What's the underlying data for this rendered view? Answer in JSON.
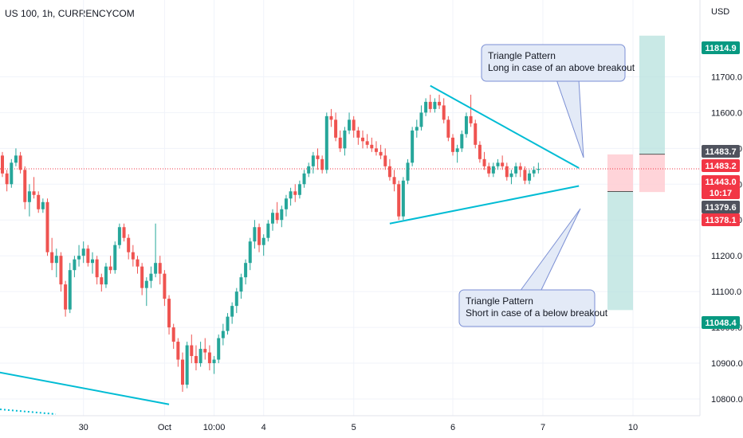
{
  "header": {
    "title": "US 100, 1h, CURRENCYCOM",
    "currency": "USD"
  },
  "colors": {
    "up": "#26a69a",
    "down": "#ef5350",
    "trendline": "#00bcd4",
    "profit_zone": "#b2dfdb",
    "loss_zone": "#ffcdd2",
    "callout_fill": "#e3eaf7",
    "callout_border": "#7b8fd4",
    "tag_green": "#089981",
    "tag_red": "#f23645",
    "tag_gray": "#50535e"
  },
  "chart_data": {
    "type": "candlestick",
    "ylim": [
      10780,
      11870
    ],
    "yticks": [
      11700,
      11600,
      11500,
      11400,
      11300,
      11200,
      11100,
      11000,
      10900,
      10800
    ],
    "ytick_labels": [
      "11700.0",
      "11600.0",
      "11500.0",
      "11400.0",
      "11300.0",
      "11200.0",
      "11100.0",
      "11000.0",
      "10900.0",
      "10800.0"
    ],
    "xtick_labels": [
      "30",
      "Oct",
      "10:00",
      "4",
      "5",
      "6",
      "7",
      "10"
    ],
    "price_tags": [
      {
        "label": "11814.9",
        "value": 11814.9,
        "color": "green"
      },
      {
        "label": "11483.7",
        "value": 11483.7,
        "color": "gray"
      },
      {
        "label": "11483.2",
        "value": 11483.2,
        "color": "red"
      },
      {
        "label": "11443.0",
        "value": 11443.0,
        "color": "red"
      },
      {
        "label": "10:17",
        "value": 11420,
        "color": "red"
      },
      {
        "label": "11379.6",
        "value": 11379.6,
        "color": "gray"
      },
      {
        "label": "11378.1",
        "value": 11378.1,
        "color": "red"
      },
      {
        "label": "11048.4",
        "value": 11048.4,
        "color": "green"
      }
    ],
    "candles": [
      [
        11480,
        11490,
        11420,
        11430
      ],
      [
        11430,
        11440,
        11380,
        11400
      ],
      [
        11400,
        11470,
        11390,
        11460
      ],
      [
        11460,
        11500,
        11450,
        11480
      ],
      [
        11480,
        11490,
        11430,
        11440
      ],
      [
        11440,
        11450,
        11330,
        11350
      ],
      [
        11350,
        11400,
        11310,
        11380
      ],
      [
        11380,
        11420,
        11360,
        11370
      ],
      [
        11370,
        11380,
        11320,
        11330
      ],
      [
        11330,
        11360,
        11320,
        11350
      ],
      [
        11350,
        11360,
        11200,
        11210
      ],
      [
        11210,
        11250,
        11160,
        11180
      ],
      [
        11180,
        11220,
        11140,
        11200
      ],
      [
        11200,
        11210,
        11100,
        11120
      ],
      [
        11120,
        11130,
        11030,
        11050
      ],
      [
        11050,
        11180,
        11040,
        11160
      ],
      [
        11160,
        11200,
        11140,
        11190
      ],
      [
        11190,
        11230,
        11170,
        11200
      ],
      [
        11200,
        11240,
        11180,
        11220
      ],
      [
        11220,
        11230,
        11170,
        11180
      ],
      [
        11180,
        11210,
        11150,
        11190
      ],
      [
        11190,
        11200,
        11120,
        11140
      ],
      [
        11140,
        11150,
        11100,
        11120
      ],
      [
        11120,
        11180,
        11110,
        11170
      ],
      [
        11170,
        11200,
        11150,
        11160
      ],
      [
        11160,
        11240,
        11150,
        11230
      ],
      [
        11230,
        11290,
        11220,
        11280
      ],
      [
        11280,
        11290,
        11240,
        11250
      ],
      [
        11250,
        11260,
        11190,
        11210
      ],
      [
        11210,
        11230,
        11170,
        11190
      ],
      [
        11190,
        11200,
        11150,
        11170
      ],
      [
        11170,
        11180,
        11090,
        11110
      ],
      [
        11110,
        11140,
        11060,
        11130
      ],
      [
        11130,
        11170,
        11110,
        11150
      ],
      [
        11150,
        11290,
        11140,
        11180
      ],
      [
        11180,
        11200,
        11120,
        11150
      ],
      [
        11150,
        11160,
        11060,
        11080
      ],
      [
        11080,
        11090,
        10980,
        11000
      ],
      [
        11000,
        11010,
        10940,
        10960
      ],
      [
        10960,
        10970,
        10890,
        10910
      ],
      [
        10910,
        10930,
        10820,
        10840
      ],
      [
        10840,
        10960,
        10830,
        10950
      ],
      [
        10950,
        10980,
        10900,
        10920
      ],
      [
        10920,
        10950,
        10880,
        10900
      ],
      [
        10900,
        10960,
        10890,
        10940
      ],
      [
        10940,
        10970,
        10910,
        10930
      ],
      [
        10930,
        10950,
        10880,
        10900
      ],
      [
        10900,
        10920,
        10870,
        10910
      ],
      [
        10910,
        10980,
        10900,
        10970
      ],
      [
        10970,
        11010,
        10950,
        10990
      ],
      [
        10990,
        11040,
        10980,
        11030
      ],
      [
        11030,
        11070,
        11010,
        11060
      ],
      [
        11060,
        11110,
        11040,
        11100
      ],
      [
        11100,
        11150,
        11080,
        11140
      ],
      [
        11140,
        11190,
        11120,
        11180
      ],
      [
        11180,
        11250,
        11160,
        11240
      ],
      [
        11240,
        11300,
        11220,
        11280
      ],
      [
        11280,
        11290,
        11210,
        11230
      ],
      [
        11230,
        11260,
        11200,
        11250
      ],
      [
        11250,
        11300,
        11240,
        11290
      ],
      [
        11290,
        11330,
        11270,
        11320
      ],
      [
        11320,
        11350,
        11290,
        11300
      ],
      [
        11300,
        11340,
        11280,
        11330
      ],
      [
        11330,
        11370,
        11310,
        11360
      ],
      [
        11360,
        11390,
        11340,
        11380
      ],
      [
        11380,
        11400,
        11350,
        11370
      ],
      [
        11370,
        11410,
        11360,
        11400
      ],
      [
        11400,
        11440,
        11390,
        11430
      ],
      [
        11430,
        11460,
        11420,
        11450
      ],
      [
        11450,
        11490,
        11430,
        11480
      ],
      [
        11480,
        11500,
        11440,
        11470
      ],
      [
        11470,
        11480,
        11430,
        11440
      ],
      [
        11440,
        11600,
        11430,
        11590
      ],
      [
        11590,
        11610,
        11560,
        11580
      ],
      [
        11580,
        11600,
        11520,
        11530
      ],
      [
        11530,
        11550,
        11490,
        11500
      ],
      [
        11500,
        11560,
        11480,
        11550
      ],
      [
        11550,
        11600,
        11540,
        11580
      ],
      [
        11580,
        11590,
        11530,
        11550
      ],
      [
        11550,
        11560,
        11510,
        11530
      ],
      [
        11530,
        11550,
        11500,
        11520
      ],
      [
        11520,
        11540,
        11500,
        11510
      ],
      [
        11510,
        11530,
        11490,
        11500
      ],
      [
        11500,
        11520,
        11480,
        11490
      ],
      [
        11490,
        11510,
        11470,
        11480
      ],
      [
        11480,
        11500,
        11440,
        11450
      ],
      [
        11450,
        11470,
        11410,
        11420
      ],
      [
        11420,
        11440,
        11380,
        11400
      ],
      [
        11400,
        11410,
        11300,
        11310
      ],
      [
        11310,
        11420,
        11300,
        11410
      ],
      [
        11410,
        11470,
        11400,
        11460
      ],
      [
        11460,
        11560,
        11450,
        11550
      ],
      [
        11550,
        11580,
        11530,
        11560
      ],
      [
        11560,
        11620,
        11550,
        11600
      ],
      [
        11600,
        11640,
        11590,
        11630
      ],
      [
        11630,
        11650,
        11600,
        11610
      ],
      [
        11610,
        11640,
        11600,
        11630
      ],
      [
        11630,
        11650,
        11610,
        11620
      ],
      [
        11620,
        11640,
        11570,
        11580
      ],
      [
        11580,
        11590,
        11520,
        11530
      ],
      [
        11530,
        11540,
        11480,
        11490
      ],
      [
        11490,
        11510,
        11460,
        11500
      ],
      [
        11500,
        11550,
        11490,
        11540
      ],
      [
        11540,
        11600,
        11530,
        11590
      ],
      [
        11590,
        11650,
        11560,
        11570
      ],
      [
        11570,
        11580,
        11500,
        11510
      ],
      [
        11510,
        11520,
        11460,
        11470
      ],
      [
        11470,
        11490,
        11440,
        11450
      ],
      [
        11450,
        11460,
        11420,
        11430
      ],
      [
        11430,
        11460,
        11420,
        11450
      ],
      [
        11450,
        11470,
        11440,
        11460
      ],
      [
        11460,
        11480,
        11440,
        11450
      ],
      [
        11450,
        11460,
        11410,
        11420
      ],
      [
        11420,
        11440,
        11400,
        11430
      ],
      [
        11430,
        11460,
        11420,
        11450
      ],
      [
        11450,
        11460,
        11420,
        11440
      ],
      [
        11440,
        11450,
        11400,
        11410
      ],
      [
        11410,
        11440,
        11400,
        11430
      ],
      [
        11430,
        11450,
        11420,
        11440
      ],
      [
        11440,
        11460,
        11430,
        11443
      ]
    ],
    "trendlines": [
      {
        "name": "upper-triangle-line",
        "from": [
          95,
          11675
        ],
        "to": [
          128,
          11445
        ]
      },
      {
        "name": "lower-triangle-line",
        "from": [
          86,
          11290
        ],
        "to": [
          128,
          11395
        ]
      },
      {
        "name": "lower-left-line",
        "from": [
          -1,
          10875
        ],
        "to": [
          37,
          10785
        ]
      }
    ],
    "positions": [
      {
        "name": "long-position",
        "entry": 11483.7,
        "target": 11814.9,
        "stop": 11378.1
      },
      {
        "name": "short-position",
        "entry": 11379.6,
        "target": 11048.4,
        "stop": 11483.2
      }
    ],
    "current_price": 11443.0,
    "annotations": [
      {
        "name": "callout-long",
        "lines": [
          "Triangle Pattern",
          "Long in case of an above breakout"
        ]
      },
      {
        "name": "callout-short",
        "lines": [
          "Triangle Pattern",
          "Short in case of a below breakout"
        ]
      }
    ]
  }
}
